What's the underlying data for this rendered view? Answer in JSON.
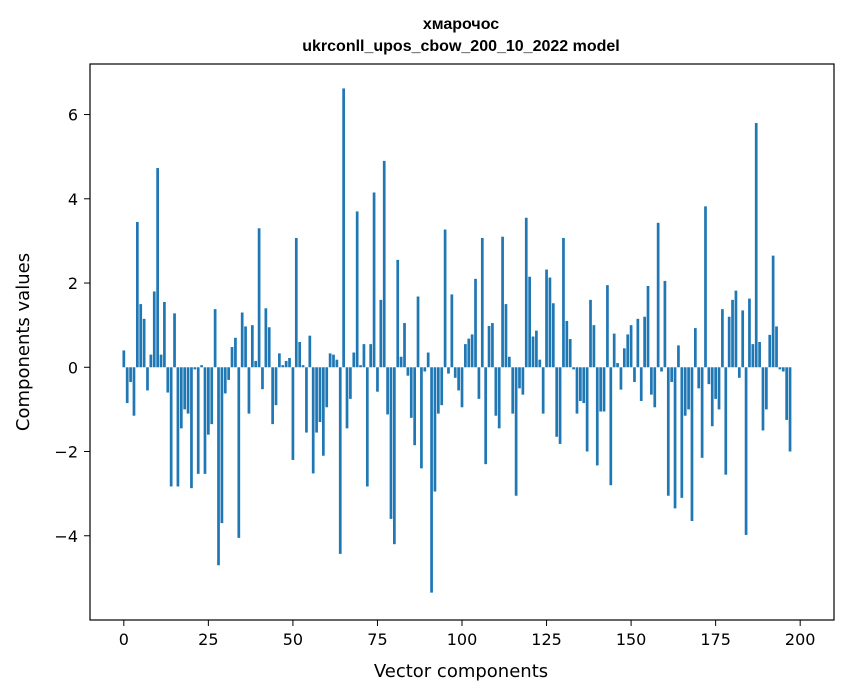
{
  "chart_data": {
    "type": "bar",
    "title": "хмарочос",
    "subtitle": "ukrconll_upos_cbow_200_10_2022 model",
    "xlabel": "Vector components",
    "ylabel": "Components values",
    "xlim": [
      -10,
      210
    ],
    "ylim": [
      -6,
      7.2
    ],
    "xticks": [
      0,
      25,
      50,
      75,
      100,
      125,
      150,
      175,
      200
    ],
    "yticks": [
      -4,
      -2,
      0,
      2,
      4,
      6
    ],
    "bar_color": "#1f77b4",
    "values": [
      0.4,
      -0.85,
      -0.35,
      -1.15,
      3.45,
      1.5,
      1.15,
      -0.55,
      0.3,
      1.8,
      4.73,
      0.3,
      1.55,
      -0.6,
      -2.83,
      1.28,
      -2.83,
      -1.45,
      -1.0,
      -1.1,
      -2.87,
      -0.05,
      -2.53,
      0.05,
      -2.53,
      -1.6,
      -1.35,
      1.38,
      -4.7,
      -3.7,
      -0.62,
      -0.3,
      0.48,
      0.7,
      -4.05,
      1.3,
      0.97,
      -1.1,
      1.0,
      0.15,
      3.3,
      -0.52,
      1.4,
      0.95,
      -1.35,
      -0.9,
      0.33,
      0.05,
      0.15,
      0.22,
      -2.2,
      3.07,
      0.6,
      0.05,
      -1.55,
      0.75,
      -2.52,
      -1.55,
      -1.3,
      -2.1,
      -0.95,
      0.33,
      0.3,
      0.18,
      -4.43,
      6.62,
      -1.45,
      -0.75,
      0.35,
      3.7,
      0.05,
      0.55,
      -2.83,
      0.55,
      4.15,
      -0.58,
      1.6,
      4.9,
      -1.12,
      -3.6,
      -4.2,
      2.55,
      0.25,
      1.05,
      -0.2,
      -1.2,
      -1.85,
      1.68,
      -2.4,
      -0.1,
      0.35,
      -5.35,
      -2.95,
      -1.1,
      -0.9,
      3.27,
      -0.15,
      1.73,
      -0.25,
      -0.55,
      -0.95,
      0.55,
      0.68,
      0.78,
      2.1,
      -0.75,
      3.07,
      -2.3,
      0.98,
      1.05,
      -1.15,
      -1.45,
      3.1,
      1.5,
      0.25,
      -1.1,
      -3.05,
      -0.5,
      -0.65,
      3.55,
      2.15,
      0.73,
      0.87,
      0.18,
      -1.1,
      2.32,
      2.13,
      1.52,
      -1.65,
      -1.82,
      3.07,
      1.1,
      0.67,
      -0.05,
      -1.1,
      -0.8,
      -0.85,
      -2.0,
      1.6,
      1.0,
      -2.33,
      -1.05,
      -1.05,
      1.95,
      -2.8,
      0.8,
      0.1,
      -0.53,
      0.45,
      0.78,
      1.0,
      -0.35,
      1.15,
      -0.8,
      1.2,
      1.93,
      -0.65,
      -0.95,
      3.43,
      -0.1,
      2.05,
      -3.05,
      -0.35,
      -3.35,
      0.52,
      -3.1,
      -1.15,
      -1.0,
      -3.65,
      0.93,
      -0.5,
      -2.15,
      3.82,
      -0.4,
      -1.4,
      -0.75,
      -1.0,
      1.38,
      -2.55,
      1.2,
      1.6,
      1.82,
      -0.25,
      1.35,
      -3.98,
      1.63,
      0.55,
      5.8,
      0.6,
      -1.5,
      -1.0,
      0.77,
      2.65,
      0.97,
      -0.05,
      -0.1,
      -1.25,
      -2.0
    ]
  }
}
